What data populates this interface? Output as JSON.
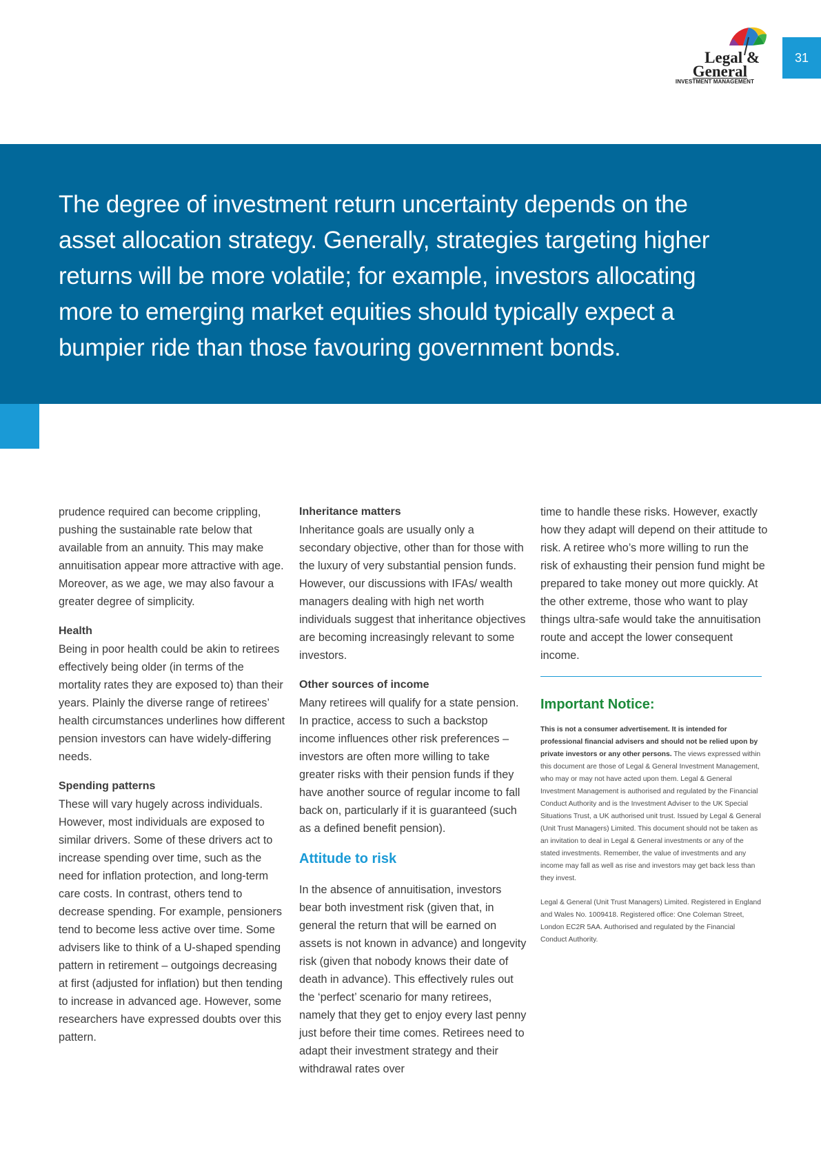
{
  "header": {
    "logo_line1": "Legal &",
    "logo_line2": "General",
    "logo_line3": "INVESTMENT MANAGEMENT",
    "page_number": "31"
  },
  "banner": {
    "quote": "The degree of investment return uncertainty depends on the asset allocation strategy. Generally, strategies targeting higher returns will be more volatile; for example, investors allocating more to emerging market equities should typically expect a bumpier ride than those favouring government bonds."
  },
  "col1": {
    "p1": "prudence required can become crippling, pushing the sustainable rate below that available from an annuity. This may make annuitisation appear more attractive with age. Moreover, as we age, we may also favour a greater degree of simplicity.",
    "h_health": "Health",
    "p_health": "Being in poor health could be akin to retirees effectively being older (in terms of the mortality rates they are exposed to) than their years. Plainly the diverse range of retirees’ health circumstances underlines how different pension investors can have widely-differing needs.",
    "h_spending": "Spending patterns",
    "p_spending": "These will vary hugely across individuals. However, most individuals are exposed to similar drivers. Some of these drivers act to increase spending over time, such as the need for inflation protection, and long-term care costs. In contrast, others tend to decrease spending. For example, pensioners tend to become less active over time. Some advisers like to think of a U-shaped spending pattern in retirement – outgoings decreasing at first (adjusted for inflation) but then tending to increase in advanced age. However, some researchers have expressed doubts over this pattern."
  },
  "col2": {
    "h_inheritance": "Inheritance matters",
    "p_inheritance": "Inheritance goals are usually only a secondary objective, other than for those with the luxury of very substantial pension funds. However, our discussions with IFAs/ wealth managers dealing with high net worth individuals suggest that inheritance objectives are becoming increasingly relevant to some investors.",
    "h_other": "Other sources of income",
    "p_other": "Many retirees will qualify for a state pension. In practice, access to such a backstop income influences other risk preferences – investors are often more willing to take greater risks with their pension funds if they have another source of regular income to fall back on, particularly if it is guaranteed (such as a defined benefit pension).",
    "h_attitude": "Attitude to risk",
    "p_attitude": "In the absence of annuitisation, investors bear both investment risk (given that, in general the return that will be earned on assets is not known in advance) and longevity risk (given that nobody knows their date of death in advance). This effectively rules out the ‘perfect’ scenario for many retirees, namely that they get to enjoy every last penny just before their time comes. Retirees need to adapt their investment strategy and their withdrawal rates over"
  },
  "col3": {
    "p1": "time to handle these risks. However, exactly how they adapt will depend on their attitude to risk. A retiree who’s more willing to run the risk of exhausting their pension fund might be prepared to take money out more quickly. At the other extreme, those who want to play things ultra-safe would take the annuitisation route and accept the lower consequent income.",
    "notice_title": "Important Notice:",
    "notice_bold": "This is not a consumer advertisement. It is intended for professional financial advisers and should not be relied upon by private investors or any other persons.",
    "notice_text": " The views expressed within this document are those of Legal & General Investment Management, who may or may not have acted upon them. Legal & General Investment Management is authorised and regulated by the Financial Conduct Authority and is the Investment Adviser to the UK Special Situations Trust, a UK authorised unit trust. Issued by Legal & General (Unit Trust Managers) Limited. This document should not be taken as an invitation to deal in Legal & General investments or any of the stated investments. Remember, the value of investments and any income may fall as well as rise and investors may get back less than they invest.",
    "registration": "Legal & General (Unit Trust Managers) Limited. Registered in England and Wales No. 1009418. Registered office: One Coleman Street, London EC2R 5AA. Authorised and regulated by the Financial Conduct Authority."
  },
  "colors": {
    "banner": "#02689a",
    "accent_blue": "#1a9ad6",
    "notice_green": "#1c8a3a"
  }
}
